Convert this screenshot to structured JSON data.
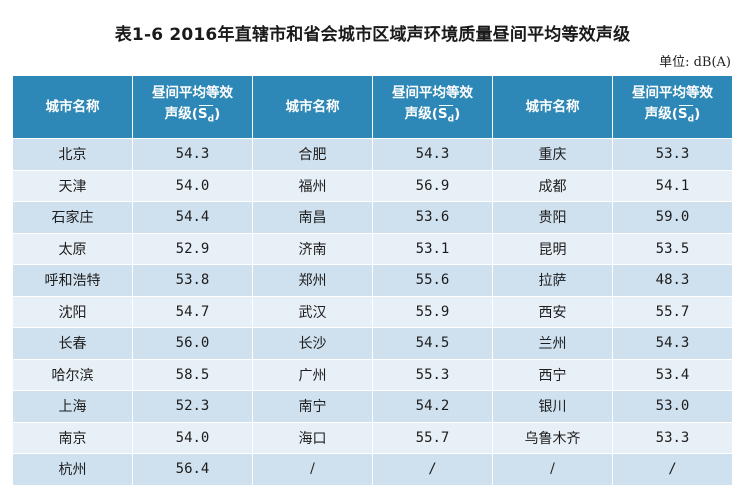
{
  "title": "表1-6  2016年直辖市和省会城市区域声环境质量昼间平均等效声级",
  "unit": "单位: dB(A)",
  "headers": {
    "city": "城市名称",
    "level_line1": "昼间平均等效",
    "level_line2": "声级(",
    "symbol_base": "S",
    "symbol_sub": "d",
    "level_close": ")"
  },
  "rows": [
    {
      "c1": "北京",
      "v1": "54.3",
      "c2": "合肥",
      "v2": "54.3",
      "c3": "重庆",
      "v3": "53.3"
    },
    {
      "c1": "天津",
      "v1": "54.0",
      "c2": "福州",
      "v2": "56.9",
      "c3": "成都",
      "v3": "54.1"
    },
    {
      "c1": "石家庄",
      "v1": "54.4",
      "c2": "南昌",
      "v2": "53.6",
      "c3": "贵阳",
      "v3": "59.0"
    },
    {
      "c1": "太原",
      "v1": "52.9",
      "c2": "济南",
      "v2": "53.1",
      "c3": "昆明",
      "v3": "53.5"
    },
    {
      "c1": "呼和浩特",
      "v1": "53.8",
      "c2": "郑州",
      "v2": "55.6",
      "c3": "拉萨",
      "v3": "48.3"
    },
    {
      "c1": "沈阳",
      "v1": "54.7",
      "c2": "武汉",
      "v2": "55.9",
      "c3": "西安",
      "v3": "55.7"
    },
    {
      "c1": "长春",
      "v1": "56.0",
      "c2": "长沙",
      "v2": "54.5",
      "c3": "兰州",
      "v3": "54.3"
    },
    {
      "c1": "哈尔滨",
      "v1": "58.5",
      "c2": "广州",
      "v2": "55.3",
      "c3": "西宁",
      "v3": "53.4"
    },
    {
      "c1": "上海",
      "v1": "52.3",
      "c2": "南宁",
      "v2": "54.2",
      "c3": "银川",
      "v3": "53.0"
    },
    {
      "c1": "南京",
      "v1": "54.0",
      "c2": "海口",
      "v2": "55.7",
      "c3": "乌鲁木齐",
      "v3": "53.3"
    },
    {
      "c1": "杭州",
      "v1": "56.4",
      "c2": "/",
      "v2": "/",
      "c3": "/",
      "v3": "/"
    }
  ]
}
